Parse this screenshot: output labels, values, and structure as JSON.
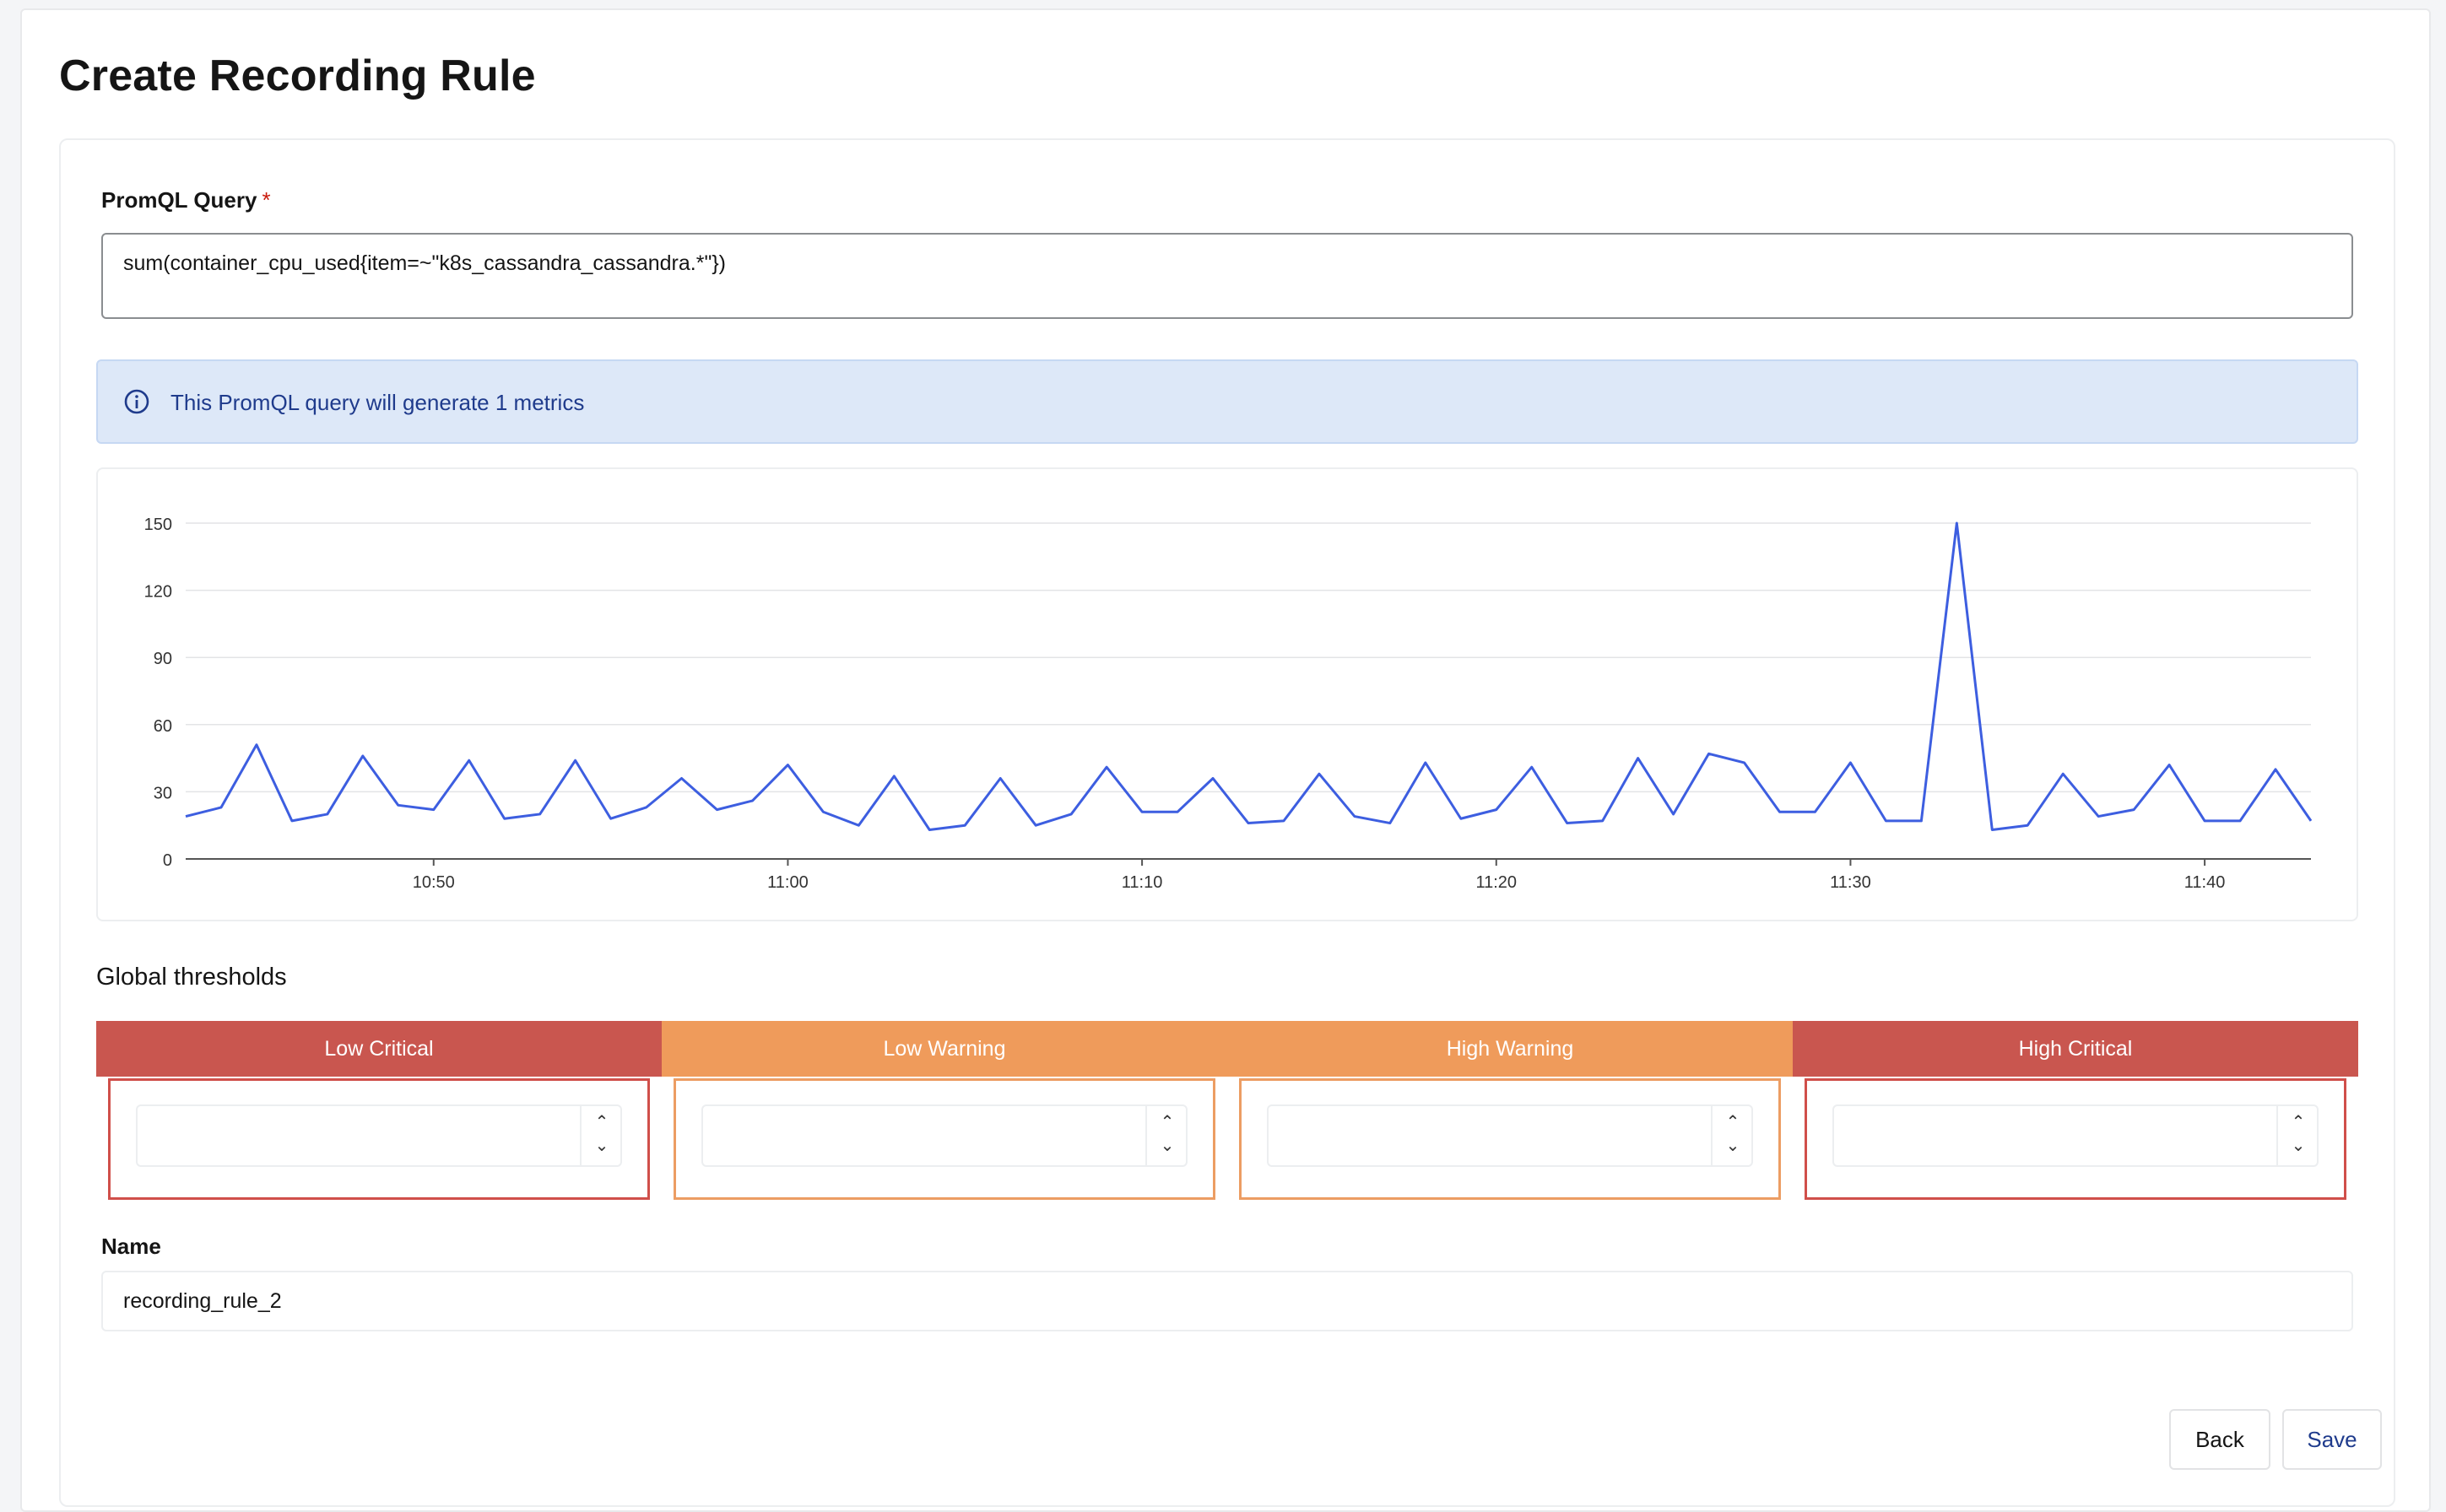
{
  "page": {
    "title": "Create Recording Rule"
  },
  "query": {
    "label": "PromQL Query",
    "required_mark": "*",
    "value": "sum(container_cpu_used{item=~\"k8s_cassandra_cassandra.*\"})"
  },
  "alert": {
    "icon": "info-circle-icon",
    "text": "This PromQL query will generate 1 metrics"
  },
  "chart_data": {
    "type": "line",
    "ylim": [
      0,
      150
    ],
    "y_ticks": [
      0,
      30,
      60,
      90,
      120,
      150
    ],
    "x_ticks": [
      "10:50",
      "11:00",
      "11:10",
      "11:20",
      "11:30",
      "11:40"
    ],
    "x_tick_minutes": [
      0,
      10,
      20,
      30,
      40,
      50
    ],
    "x_range_minutes": [
      -7,
      53
    ],
    "grid": true,
    "series": [
      {
        "color": "#3d5ee0",
        "x_minutes": [
          -7,
          -6,
          -5,
          -4,
          -3,
          -2,
          -1,
          0,
          1,
          2,
          3,
          4,
          5,
          6,
          7,
          8,
          9,
          10,
          11,
          12,
          13,
          14,
          15,
          16,
          17,
          18,
          19,
          20,
          21,
          22,
          23,
          24,
          25,
          26,
          27,
          28,
          29,
          30,
          31,
          32,
          33,
          34,
          35,
          36,
          37,
          38,
          39,
          40,
          41,
          42,
          43,
          44,
          45,
          46,
          47,
          48,
          49,
          50,
          51,
          52,
          53
        ],
        "values": [
          19,
          23,
          51,
          17,
          20,
          46,
          24,
          22,
          44,
          18,
          20,
          44,
          18,
          23,
          36,
          22,
          26,
          42,
          21,
          15,
          37,
          13,
          15,
          36,
          15,
          20,
          41,
          21,
          21,
          36,
          16,
          17,
          38,
          19,
          16,
          43,
          18,
          22,
          41,
          16,
          17,
          45,
          20,
          47,
          43,
          21,
          21,
          43,
          17,
          17,
          150,
          13,
          15,
          38,
          19,
          22,
          42,
          17,
          17,
          40,
          17
        ]
      }
    ]
  },
  "thresholds": {
    "title": "Global thresholds",
    "items": [
      {
        "label": "Low Critical",
        "value": "",
        "color": "#c9564f",
        "border": "#d04f4a"
      },
      {
        "label": "Low Warning",
        "value": "",
        "color": "#ef9b5b",
        "border": "#ec9d63"
      },
      {
        "label": "High Warning",
        "value": "",
        "color": "#ef9b5b",
        "border": "#ec9d63"
      },
      {
        "label": "High Critical",
        "value": "",
        "color": "#c9564f",
        "border": "#d04f4a"
      }
    ],
    "spin_up": "⌃",
    "spin_down": "⌄"
  },
  "name": {
    "label": "Name",
    "value": "recording_rule_2"
  },
  "buttons": {
    "back": "Back",
    "save": "Save"
  }
}
